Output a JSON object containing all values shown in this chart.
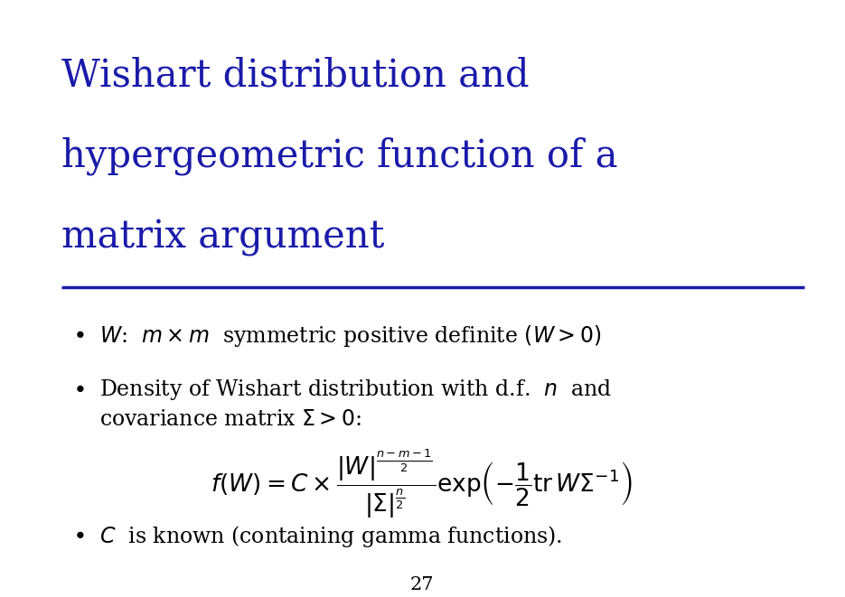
{
  "title_lines": [
    "Wishart distribution and",
    "hypergeometric function of a",
    "matrix argument"
  ],
  "title_color": "#1a1aaa",
  "title_fontsize": 30,
  "rule_color": "#1a1aaa",
  "bullet_color": "#000000",
  "bullet_fontsize": 17,
  "page_number": "27",
  "background_color": "#FFFFFF",
  "bullet1": "$W$:  $m \\times m$  symmetric positive definite $(W > 0)$",
  "bullet2a": "Density of Wishart distribution with d.f.  $n$  and",
  "bullet2b": "covariance matrix $\\Sigma > 0$:",
  "bullet3": "$C$  is known (containing gamma functions).",
  "formula": "$f(W) = C \\times \\dfrac{|W|^{\\frac{n-m-1}{2}}}{|\\Sigma|^{\\frac{n}{2}}} \\exp\\!\\left(-\\dfrac{1}{2}\\mathrm{tr}\\,W\\Sigma^{-1}\\right)$"
}
